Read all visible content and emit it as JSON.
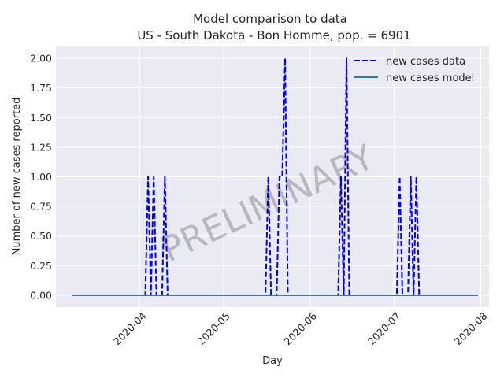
{
  "chart_data": {
    "type": "line",
    "title_line1": "Model comparison to data",
    "title_line2": "US - South Dakota - Bon Homme, pop. = 6901",
    "xlabel": "Day",
    "ylabel": "Number of new cases reported",
    "watermark": "PRELIMINARY",
    "grid": true,
    "legend_placement": "top-right",
    "xlim": [
      "2020-03-02",
      "2020-08-04"
    ],
    "ylim": [
      -0.1,
      2.1
    ],
    "yticks": [
      0.0,
      0.25,
      0.5,
      0.75,
      1.0,
      1.25,
      1.5,
      1.75,
      2.0
    ],
    "ytick_labels": [
      "0.00",
      "0.25",
      "0.50",
      "0.75",
      "1.00",
      "1.25",
      "1.50",
      "1.75",
      "2.00"
    ],
    "xticks": [
      "2020-04-01",
      "2020-05-01",
      "2020-06-01",
      "2020-07-01",
      "2020-08-01"
    ],
    "xtick_labels": [
      "2020-04",
      "2020-05",
      "2020-06",
      "2020-07",
      "2020-08"
    ],
    "series": [
      {
        "name": "new cases data",
        "color": "#0000ff",
        "style": "dashed",
        "points": [
          [
            "2020-03-08",
            0
          ],
          [
            "2020-04-03",
            0
          ],
          [
            "2020-04-04",
            1
          ],
          [
            "2020-04-05",
            0
          ],
          [
            "2020-04-06",
            1
          ],
          [
            "2020-04-07",
            0
          ],
          [
            "2020-04-09",
            0
          ],
          [
            "2020-04-10",
            1
          ],
          [
            "2020-04-11",
            0
          ],
          [
            "2020-05-16",
            0
          ],
          [
            "2020-05-17",
            1
          ],
          [
            "2020-05-18",
            0
          ],
          [
            "2020-05-20",
            0
          ],
          [
            "2020-05-21",
            1
          ],
          [
            "2020-05-22",
            1
          ],
          [
            "2020-05-23",
            2
          ],
          [
            "2020-05-24",
            0
          ],
          [
            "2020-06-11",
            0
          ],
          [
            "2020-06-12",
            1
          ],
          [
            "2020-06-13",
            0
          ],
          [
            "2020-06-14",
            2
          ],
          [
            "2020-06-15",
            0
          ],
          [
            "2020-07-02",
            0
          ],
          [
            "2020-07-03",
            1
          ],
          [
            "2020-07-04",
            0
          ],
          [
            "2020-07-06",
            0
          ],
          [
            "2020-07-07",
            1
          ],
          [
            "2020-07-08",
            0
          ],
          [
            "2020-07-09",
            1
          ],
          [
            "2020-07-10",
            0
          ],
          [
            "2020-07-31",
            0
          ]
        ]
      },
      {
        "name": "new cases model",
        "color": "#3a75af",
        "style": "solid",
        "points": [
          [
            "2020-03-08",
            0
          ],
          [
            "2020-07-31",
            0
          ]
        ]
      }
    ]
  }
}
